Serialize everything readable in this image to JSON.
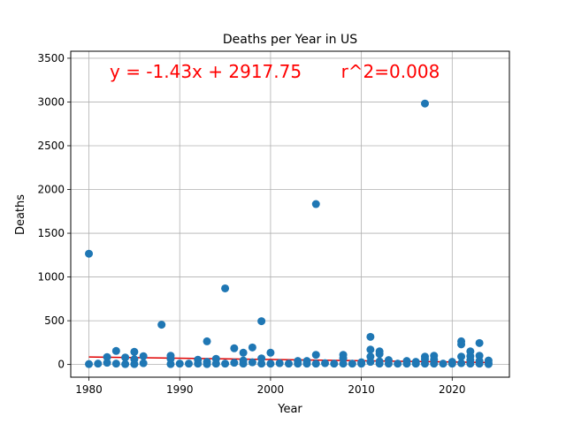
{
  "chart_data": {
    "type": "scatter",
    "title": "Deaths per Year in US",
    "xlabel": "Year",
    "ylabel": "Deaths",
    "xlim": [
      1978,
      2026.3
    ],
    "ylim": [
      -145,
      3580
    ],
    "xticks": [
      1980,
      1990,
      2000,
      2010,
      2020
    ],
    "yticks": [
      0,
      500,
      1000,
      1500,
      2000,
      2500,
      3000,
      3500
    ],
    "grid": true,
    "annotation": "y = -1.43x + 2917.75       r^2=0.008",
    "point_color": "#1f77b4",
    "regression_color": "#e00000",
    "annotation_color": "#ff0000",
    "regression": {
      "slope": -1.43,
      "intercept": 2917.75,
      "r2": 0.008
    },
    "points": [
      {
        "x": 1980,
        "y": 1266
      },
      {
        "x": 1980,
        "y": 5
      },
      {
        "x": 1981,
        "y": 10
      },
      {
        "x": 1982,
        "y": 85
      },
      {
        "x": 1982,
        "y": 20
      },
      {
        "x": 1983,
        "y": 155
      },
      {
        "x": 1983,
        "y": 10
      },
      {
        "x": 1984,
        "y": 80
      },
      {
        "x": 1984,
        "y": 5
      },
      {
        "x": 1985,
        "y": 145
      },
      {
        "x": 1985,
        "y": 60
      },
      {
        "x": 1985,
        "y": 5
      },
      {
        "x": 1986,
        "y": 95
      },
      {
        "x": 1986,
        "y": 15
      },
      {
        "x": 1988,
        "y": 455
      },
      {
        "x": 1989,
        "y": 100
      },
      {
        "x": 1989,
        "y": 65
      },
      {
        "x": 1989,
        "y": 5
      },
      {
        "x": 1990,
        "y": 10
      },
      {
        "x": 1991,
        "y": 10
      },
      {
        "x": 1992,
        "y": 55
      },
      {
        "x": 1992,
        "y": 10
      },
      {
        "x": 1993,
        "y": 265
      },
      {
        "x": 1993,
        "y": 30
      },
      {
        "x": 1993,
        "y": 5
      },
      {
        "x": 1994,
        "y": 65
      },
      {
        "x": 1994,
        "y": 10
      },
      {
        "x": 1995,
        "y": 870
      },
      {
        "x": 1995,
        "y": 10
      },
      {
        "x": 1996,
        "y": 185
      },
      {
        "x": 1996,
        "y": 20
      },
      {
        "x": 1997,
        "y": 135
      },
      {
        "x": 1997,
        "y": 45
      },
      {
        "x": 1997,
        "y": 10
      },
      {
        "x": 1998,
        "y": 195
      },
      {
        "x": 1998,
        "y": 25
      },
      {
        "x": 1999,
        "y": 495
      },
      {
        "x": 1999,
        "y": 70
      },
      {
        "x": 1999,
        "y": 10
      },
      {
        "x": 2000,
        "y": 135
      },
      {
        "x": 2000,
        "y": 10
      },
      {
        "x": 2001,
        "y": 15
      },
      {
        "x": 2002,
        "y": 10
      },
      {
        "x": 2003,
        "y": 40
      },
      {
        "x": 2003,
        "y": 10
      },
      {
        "x": 2004,
        "y": 40
      },
      {
        "x": 2004,
        "y": 10
      },
      {
        "x": 2005,
        "y": 1833
      },
      {
        "x": 2005,
        "y": 110
      },
      {
        "x": 2005,
        "y": 10
      },
      {
        "x": 2006,
        "y": 15
      },
      {
        "x": 2007,
        "y": 10
      },
      {
        "x": 2008,
        "y": 110
      },
      {
        "x": 2008,
        "y": 70
      },
      {
        "x": 2008,
        "y": 10
      },
      {
        "x": 2009,
        "y": 10
      },
      {
        "x": 2010,
        "y": 25
      },
      {
        "x": 2010,
        "y": 10
      },
      {
        "x": 2011,
        "y": 316
      },
      {
        "x": 2011,
        "y": 170
      },
      {
        "x": 2011,
        "y": 90
      },
      {
        "x": 2011,
        "y": 30
      },
      {
        "x": 2012,
        "y": 150
      },
      {
        "x": 2012,
        "y": 120
      },
      {
        "x": 2012,
        "y": 35
      },
      {
        "x": 2012,
        "y": 10
      },
      {
        "x": 2013,
        "y": 50
      },
      {
        "x": 2013,
        "y": 10
      },
      {
        "x": 2014,
        "y": 10
      },
      {
        "x": 2015,
        "y": 40
      },
      {
        "x": 2015,
        "y": 10
      },
      {
        "x": 2016,
        "y": 30
      },
      {
        "x": 2016,
        "y": 10
      },
      {
        "x": 2017,
        "y": 2982
      },
      {
        "x": 2017,
        "y": 90
      },
      {
        "x": 2017,
        "y": 60
      },
      {
        "x": 2017,
        "y": 10
      },
      {
        "x": 2018,
        "y": 100
      },
      {
        "x": 2018,
        "y": 55
      },
      {
        "x": 2018,
        "y": 10
      },
      {
        "x": 2019,
        "y": 10
      },
      {
        "x": 2020,
        "y": 30
      },
      {
        "x": 2020,
        "y": 10
      },
      {
        "x": 2021,
        "y": 265
      },
      {
        "x": 2021,
        "y": 230
      },
      {
        "x": 2021,
        "y": 90
      },
      {
        "x": 2021,
        "y": 15
      },
      {
        "x": 2022,
        "y": 150
      },
      {
        "x": 2022,
        "y": 95
      },
      {
        "x": 2022,
        "y": 50
      },
      {
        "x": 2022,
        "y": 10
      },
      {
        "x": 2023,
        "y": 245
      },
      {
        "x": 2023,
        "y": 100
      },
      {
        "x": 2023,
        "y": 40
      },
      {
        "x": 2023,
        "y": 10
      },
      {
        "x": 2024,
        "y": 45
      },
      {
        "x": 2024,
        "y": 15
      },
      {
        "x": 2024,
        "y": 5
      }
    ]
  }
}
